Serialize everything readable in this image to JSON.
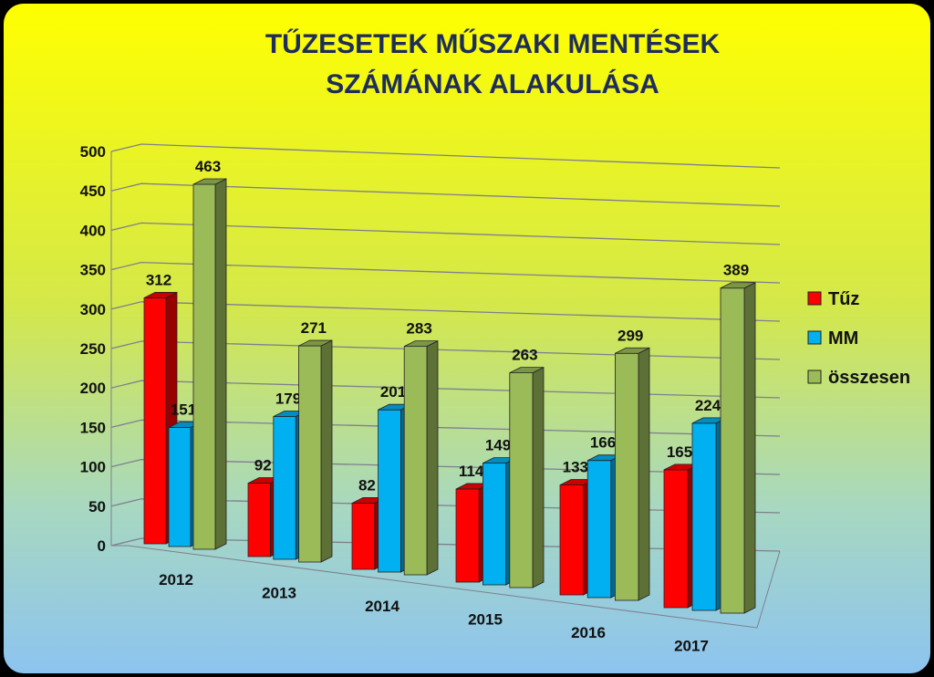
{
  "chart_data": {
    "type": "bar3d",
    "title": [
      "TŰZESETEK MŰSZAKI MENTÉSEK",
      "SZÁMÁNAK ALAKULÁSA"
    ],
    "categories": [
      "2012",
      "2013",
      "2014",
      "2015",
      "2016",
      "2017"
    ],
    "series": [
      {
        "name": "Tűz",
        "color": "#ff0000",
        "values": [
          312,
          92,
          82,
          114,
          133,
          165
        ]
      },
      {
        "name": "MM",
        "color": "#00b0f0",
        "values": [
          151,
          179,
          201,
          149,
          166,
          224
        ]
      },
      {
        "name": "összesen",
        "color": "#9bbb59",
        "values": [
          463,
          271,
          283,
          263,
          299,
          389
        ]
      }
    ],
    "ylim": [
      0,
      500
    ],
    "yticks": [
      0,
      50,
      100,
      150,
      200,
      250,
      300,
      350,
      400,
      450,
      500
    ],
    "grid": true,
    "legend": "right"
  }
}
